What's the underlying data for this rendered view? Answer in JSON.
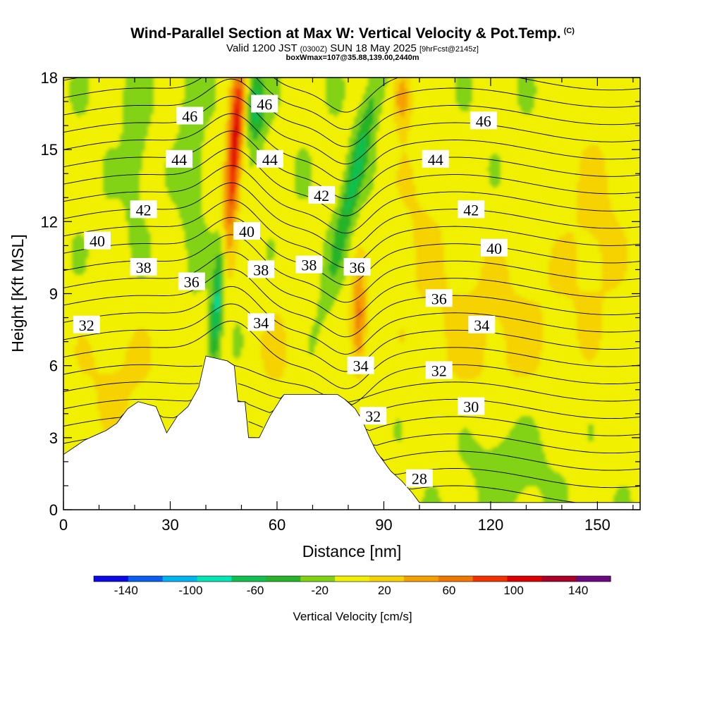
{
  "header": {
    "title": "Wind-Parallel Section at Max W: Vertical Velocity & Pot.Temp.",
    "copyright": "(C)",
    "valid_prefix": "Valid 1200 JST",
    "valid_utc": "(0300Z)",
    "valid_date": "SUN 18 May 2025",
    "forecast": "[9hrFcst@2145z]",
    "box_info": "boxWmax=107@35.88,139.00,2440m"
  },
  "chart_data": {
    "type": "heatmap",
    "title": "Wind-Parallel Section at Max W: Vertical Velocity & Pot.Temp.",
    "xlabel": "Distance [nm]",
    "ylabel": "Height [Kft MSL]",
    "xlim": [
      0,
      162
    ],
    "ylim": [
      0,
      18
    ],
    "x_ticks": [
      0,
      30,
      60,
      90,
      120,
      150
    ],
    "y_ticks": [
      0,
      3,
      6,
      9,
      12,
      15,
      18
    ],
    "colorbar": {
      "label": "Vertical Velocity [cm/s]",
      "tick_values": [
        -140,
        -100,
        -60,
        -20,
        20,
        60,
        100,
        140
      ],
      "tick_labels": [
        "-140",
        "-100",
        "-60",
        "-20",
        "20",
        "60",
        "100",
        "140"
      ],
      "bounds": [
        -160,
        160
      ],
      "colors": [
        "#0a0ae6",
        "#0a5ff0",
        "#00b4f0",
        "#00e6b4",
        "#10c050",
        "#28b428",
        "#82d214",
        "#f0f000",
        "#f5d200",
        "#f5a000",
        "#f07800",
        "#f03200",
        "#dc0000",
        "#aa0028",
        "#6a0a82"
      ]
    },
    "velocity_features": [
      {
        "x": 48,
        "y": 14.5,
        "value": 110
      },
      {
        "x": 47,
        "y": 11.5,
        "value": 90
      },
      {
        "x": 44,
        "y": 8.0,
        "value": -70
      },
      {
        "x": 53,
        "y": 16.5,
        "value": -60
      },
      {
        "x": 83,
        "y": 8.0,
        "value": 60
      },
      {
        "x": 95,
        "y": 17.2,
        "value": 60
      },
      {
        "x": 88,
        "y": 15.5,
        "value": -60
      },
      {
        "x": 86,
        "y": 11.0,
        "value": -30
      },
      {
        "x": 58,
        "y": 7.0,
        "value": 30
      },
      {
        "x": 120,
        "y": 8.0,
        "value": 10
      },
      {
        "x": 20,
        "y": 6.0,
        "value": 10
      },
      {
        "x": 36,
        "y": 15.0,
        "value": -25
      }
    ],
    "terrain_profile": [
      [
        0,
        2.3
      ],
      [
        3,
        2.6
      ],
      [
        6,
        2.9
      ],
      [
        9,
        3.1
      ],
      [
        12,
        3.3
      ],
      [
        15,
        3.6
      ],
      [
        18,
        4.2
      ],
      [
        21,
        4.5
      ],
      [
        26,
        4.3
      ],
      [
        29,
        3.2
      ],
      [
        32,
        3.9
      ],
      [
        35,
        4.3
      ],
      [
        38,
        5.1
      ],
      [
        40,
        6.4
      ],
      [
        46,
        6.2
      ],
      [
        48,
        6.0
      ],
      [
        49,
        4.5
      ],
      [
        51,
        4.5
      ],
      [
        52,
        3.0
      ],
      [
        55,
        3.0
      ],
      [
        58,
        3.9
      ],
      [
        61,
        4.6
      ],
      [
        62,
        4.8
      ],
      [
        77,
        4.8
      ],
      [
        79,
        4.6
      ],
      [
        82,
        4.2
      ],
      [
        84,
        3.7
      ],
      [
        86,
        3.0
      ],
      [
        88,
        2.4
      ],
      [
        90,
        2.0
      ],
      [
        92,
        1.6
      ],
      [
        95,
        1.2
      ],
      [
        98,
        0.7
      ],
      [
        100,
        0.3
      ],
      [
        162,
        0.3
      ]
    ],
    "theta_contour_labels": [
      {
        "text": "46",
        "x": 35.5,
        "y": 16.4
      },
      {
        "text": "46",
        "x": 56.5,
        "y": 16.9
      },
      {
        "text": "46",
        "x": 118,
        "y": 16.2
      },
      {
        "text": "44",
        "x": 32.5,
        "y": 14.6
      },
      {
        "text": "44",
        "x": 58,
        "y": 14.6
      },
      {
        "text": "44",
        "x": 104.5,
        "y": 14.6
      },
      {
        "text": "42",
        "x": 22.5,
        "y": 12.5
      },
      {
        "text": "42",
        "x": 72.5,
        "y": 13.1
      },
      {
        "text": "42",
        "x": 114.5,
        "y": 12.5
      },
      {
        "text": "40",
        "x": 9.5,
        "y": 11.2
      },
      {
        "text": "40",
        "x": 51.5,
        "y": 11.6
      },
      {
        "text": "40",
        "x": 121,
        "y": 10.9
      },
      {
        "text": "38",
        "x": 22.5,
        "y": 10.1
      },
      {
        "text": "38",
        "x": 55.5,
        "y": 10.0
      },
      {
        "text": "38",
        "x": 69,
        "y": 10.2
      },
      {
        "text": "36",
        "x": 36,
        "y": 9.5
      },
      {
        "text": "36",
        "x": 82.5,
        "y": 10.1
      },
      {
        "text": "36",
        "x": 105.5,
        "y": 8.8
      },
      {
        "text": "34",
        "x": 55.5,
        "y": 7.8
      },
      {
        "text": "34",
        "x": 83.5,
        "y": 6.0
      },
      {
        "text": "34",
        "x": 117.5,
        "y": 7.7
      },
      {
        "text": "32",
        "x": 6.5,
        "y": 7.7
      },
      {
        "text": "32",
        "x": 87,
        "y": 3.9
      },
      {
        "text": "32",
        "x": 105.5,
        "y": 5.8
      },
      {
        "text": "30",
        "x": 114.5,
        "y": 4.3
      },
      {
        "text": "28",
        "x": 100,
        "y": 1.3
      }
    ]
  }
}
